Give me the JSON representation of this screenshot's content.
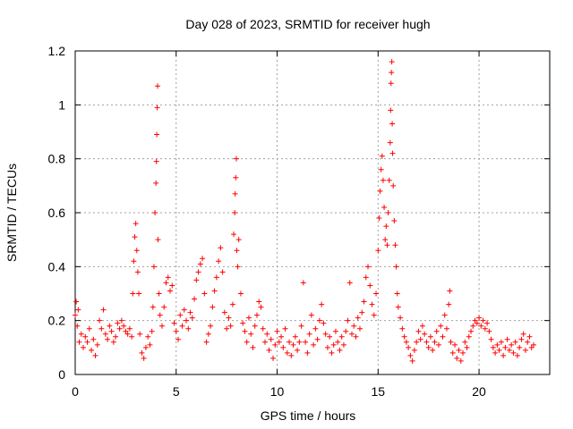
{
  "chart_data": {
    "type": "scatter",
    "title": "Day 028 of 2023, SRMTID for receiver hugh",
    "xlabel": "GPS time / hours",
    "ylabel": "SRMTID / TECUs",
    "xlim": [
      0,
      23.5
    ],
    "ylim": [
      0,
      1.2
    ],
    "x_ticks": [
      0,
      5,
      10,
      15,
      20
    ],
    "x_tick_labels": [
      "0",
      "5",
      "10",
      "15",
      "20"
    ],
    "y_ticks": [
      0,
      0.2,
      0.4,
      0.6,
      0.8,
      1.0,
      1.2
    ],
    "y_tick_labels": [
      "0",
      "0.2",
      "0.4",
      "0.6",
      "0.8",
      "1",
      "1.2"
    ],
    "grid": true,
    "marker": "+",
    "series": [
      {
        "name": "SRMTID",
        "color": "#ff0000",
        "points": [
          [
            0.0,
            0.22
          ],
          [
            0.05,
            0.27
          ],
          [
            0.1,
            0.18
          ],
          [
            0.15,
            0.24
          ],
          [
            0.2,
            0.12
          ],
          [
            0.3,
            0.15
          ],
          [
            0.4,
            0.1
          ],
          [
            0.5,
            0.14
          ],
          [
            0.6,
            0.12
          ],
          [
            0.7,
            0.17
          ],
          [
            0.8,
            0.09
          ],
          [
            0.9,
            0.13
          ],
          [
            1.0,
            0.07
          ],
          [
            1.1,
            0.11
          ],
          [
            1.2,
            0.2
          ],
          [
            1.3,
            0.17
          ],
          [
            1.4,
            0.24
          ],
          [
            1.5,
            0.15
          ],
          [
            1.6,
            0.13
          ],
          [
            1.7,
            0.18
          ],
          [
            1.8,
            0.16
          ],
          [
            1.9,
            0.12
          ],
          [
            2.0,
            0.14
          ],
          [
            2.1,
            0.19
          ],
          [
            2.2,
            0.17
          ],
          [
            2.3,
            0.2
          ],
          [
            2.4,
            0.18
          ],
          [
            2.5,
            0.16
          ],
          [
            2.6,
            0.15
          ],
          [
            2.7,
            0.17
          ],
          [
            2.8,
            0.14
          ],
          [
            2.85,
            0.3
          ],
          [
            2.9,
            0.42
          ],
          [
            2.95,
            0.51
          ],
          [
            3.0,
            0.56
          ],
          [
            3.05,
            0.46
          ],
          [
            3.1,
            0.38
          ],
          [
            3.15,
            0.3
          ],
          [
            3.2,
            0.15
          ],
          [
            3.3,
            0.08
          ],
          [
            3.4,
            0.06
          ],
          [
            3.5,
            0.1
          ],
          [
            3.6,
            0.14
          ],
          [
            3.7,
            0.11
          ],
          [
            3.8,
            0.16
          ],
          [
            3.85,
            0.25
          ],
          [
            3.9,
            0.4
          ],
          [
            3.95,
            0.6
          ],
          [
            4.0,
            0.71
          ],
          [
            4.02,
            0.79
          ],
          [
            4.04,
            0.89
          ],
          [
            4.06,
            0.99
          ],
          [
            4.08,
            1.07
          ],
          [
            4.1,
            0.5
          ],
          [
            4.15,
            0.3
          ],
          [
            4.2,
            0.22
          ],
          [
            4.3,
            0.18
          ],
          [
            4.4,
            0.25
          ],
          [
            4.5,
            0.34
          ],
          [
            4.6,
            0.36
          ],
          [
            4.7,
            0.31
          ],
          [
            4.8,
            0.33
          ],
          [
            4.9,
            0.19
          ],
          [
            5.0,
            0.16
          ],
          [
            5.1,
            0.13
          ],
          [
            5.2,
            0.22
          ],
          [
            5.3,
            0.18
          ],
          [
            5.4,
            0.24
          ],
          [
            5.5,
            0.2
          ],
          [
            5.6,
            0.17
          ],
          [
            5.7,
            0.23
          ],
          [
            5.8,
            0.21
          ],
          [
            5.9,
            0.28
          ],
          [
            6.0,
            0.35
          ],
          [
            6.1,
            0.38
          ],
          [
            6.2,
            0.41
          ],
          [
            6.3,
            0.43
          ],
          [
            6.4,
            0.3
          ],
          [
            6.5,
            0.12
          ],
          [
            6.6,
            0.15
          ],
          [
            6.7,
            0.18
          ],
          [
            6.8,
            0.25
          ],
          [
            6.9,
            0.31
          ],
          [
            7.0,
            0.36
          ],
          [
            7.1,
            0.42
          ],
          [
            7.2,
            0.47
          ],
          [
            7.3,
            0.38
          ],
          [
            7.4,
            0.23
          ],
          [
            7.5,
            0.17
          ],
          [
            7.6,
            0.21
          ],
          [
            7.7,
            0.18
          ],
          [
            7.8,
            0.26
          ],
          [
            7.85,
            0.52
          ],
          [
            7.9,
            0.6
          ],
          [
            7.92,
            0.67
          ],
          [
            7.95,
            0.73
          ],
          [
            7.98,
            0.8
          ],
          [
            8.0,
            0.46
          ],
          [
            8.05,
            0.4
          ],
          [
            8.1,
            0.5
          ],
          [
            8.2,
            0.3
          ],
          [
            8.3,
            0.19
          ],
          [
            8.4,
            0.16
          ],
          [
            8.5,
            0.12
          ],
          [
            8.6,
            0.21
          ],
          [
            8.7,
            0.15
          ],
          [
            8.8,
            0.1
          ],
          [
            8.9,
            0.18
          ],
          [
            9.0,
            0.22
          ],
          [
            9.1,
            0.27
          ],
          [
            9.2,
            0.25
          ],
          [
            9.3,
            0.17
          ],
          [
            9.4,
            0.12
          ],
          [
            9.5,
            0.15
          ],
          [
            9.6,
            0.09
          ],
          [
            9.7,
            0.13
          ],
          [
            9.8,
            0.06
          ],
          [
            9.9,
            0.11
          ],
          [
            10.0,
            0.16
          ],
          [
            10.1,
            0.12
          ],
          [
            10.2,
            0.14
          ],
          [
            10.3,
            0.1
          ],
          [
            10.4,
            0.17
          ],
          [
            10.5,
            0.08
          ],
          [
            10.6,
            0.12
          ],
          [
            10.7,
            0.07
          ],
          [
            10.8,
            0.11
          ],
          [
            10.9,
            0.14
          ],
          [
            11.0,
            0.09
          ],
          [
            11.1,
            0.12
          ],
          [
            11.2,
            0.18
          ],
          [
            11.3,
            0.34
          ],
          [
            11.4,
            0.12
          ],
          [
            11.5,
            0.08
          ],
          [
            11.6,
            0.15
          ],
          [
            11.7,
            0.22
          ],
          [
            11.8,
            0.11
          ],
          [
            11.9,
            0.17
          ],
          [
            12.0,
            0.13
          ],
          [
            12.1,
            0.2
          ],
          [
            12.2,
            0.26
          ],
          [
            12.3,
            0.19
          ],
          [
            12.4,
            0.15
          ],
          [
            12.5,
            0.1
          ],
          [
            12.6,
            0.14
          ],
          [
            12.7,
            0.08
          ],
          [
            12.8,
            0.11
          ],
          [
            12.9,
            0.16
          ],
          [
            13.0,
            0.12
          ],
          [
            13.1,
            0.09
          ],
          [
            13.2,
            0.14
          ],
          [
            13.3,
            0.11
          ],
          [
            13.4,
            0.16
          ],
          [
            13.5,
            0.2
          ],
          [
            13.6,
            0.34
          ],
          [
            13.7,
            0.15
          ],
          [
            13.8,
            0.18
          ],
          [
            13.9,
            0.14
          ],
          [
            14.0,
            0.21
          ],
          [
            14.1,
            0.17
          ],
          [
            14.2,
            0.23
          ],
          [
            14.3,
            0.27
          ],
          [
            14.4,
            0.36
          ],
          [
            14.5,
            0.4
          ],
          [
            14.6,
            0.33
          ],
          [
            14.7,
            0.26
          ],
          [
            14.8,
            0.22
          ],
          [
            14.9,
            0.3
          ],
          [
            15.0,
            0.46
          ],
          [
            15.05,
            0.58
          ],
          [
            15.1,
            0.68
          ],
          [
            15.15,
            0.76
          ],
          [
            15.2,
            0.81
          ],
          [
            15.25,
            0.72
          ],
          [
            15.3,
            0.62
          ],
          [
            15.35,
            0.5
          ],
          [
            15.4,
            0.55
          ],
          [
            15.45,
            0.48
          ],
          [
            15.5,
            0.6
          ],
          [
            15.55,
            0.72
          ],
          [
            15.6,
            0.86
          ],
          [
            15.62,
            0.98
          ],
          [
            15.64,
            1.08
          ],
          [
            15.66,
            1.12
          ],
          [
            15.68,
            1.16
          ],
          [
            15.7,
            0.93
          ],
          [
            15.72,
            0.82
          ],
          [
            15.75,
            0.7
          ],
          [
            15.8,
            0.57
          ],
          [
            15.85,
            0.48
          ],
          [
            15.9,
            0.4
          ],
          [
            15.95,
            0.3
          ],
          [
            16.0,
            0.25
          ],
          [
            16.1,
            0.21
          ],
          [
            16.2,
            0.17
          ],
          [
            16.3,
            0.14
          ],
          [
            16.4,
            0.12
          ],
          [
            16.5,
            0.1
          ],
          [
            16.6,
            0.07
          ],
          [
            16.7,
            0.05
          ],
          [
            16.8,
            0.09
          ],
          [
            16.9,
            0.12
          ],
          [
            17.0,
            0.16
          ],
          [
            17.1,
            0.13
          ],
          [
            17.2,
            0.18
          ],
          [
            17.3,
            0.15
          ],
          [
            17.4,
            0.12
          ],
          [
            17.5,
            0.1
          ],
          [
            17.6,
            0.14
          ],
          [
            17.7,
            0.09
          ],
          [
            17.8,
            0.12
          ],
          [
            17.9,
            0.16
          ],
          [
            18.0,
            0.11
          ],
          [
            18.1,
            0.18
          ],
          [
            18.2,
            0.14
          ],
          [
            18.3,
            0.22
          ],
          [
            18.4,
            0.17
          ],
          [
            18.5,
            0.26
          ],
          [
            18.55,
            0.31
          ],
          [
            18.6,
            0.12
          ],
          [
            18.7,
            0.08
          ],
          [
            18.8,
            0.11
          ],
          [
            18.9,
            0.06
          ],
          [
            19.0,
            0.09
          ],
          [
            19.1,
            0.05
          ],
          [
            19.2,
            0.08
          ],
          [
            19.3,
            0.12
          ],
          [
            19.4,
            0.1
          ],
          [
            19.5,
            0.14
          ],
          [
            19.6,
            0.16
          ],
          [
            19.7,
            0.18
          ],
          [
            19.8,
            0.2
          ],
          [
            19.9,
            0.19
          ],
          [
            20.0,
            0.21
          ],
          [
            20.1,
            0.18
          ],
          [
            20.2,
            0.2
          ],
          [
            20.3,
            0.17
          ],
          [
            20.4,
            0.19
          ],
          [
            20.5,
            0.16
          ],
          [
            20.6,
            0.13
          ],
          [
            20.7,
            0.1
          ],
          [
            20.8,
            0.08
          ],
          [
            20.9,
            0.11
          ],
          [
            21.0,
            0.09
          ],
          [
            21.1,
            0.12
          ],
          [
            21.2,
            0.07
          ],
          [
            21.3,
            0.1
          ],
          [
            21.4,
            0.13
          ],
          [
            21.5,
            0.09
          ],
          [
            21.6,
            0.11
          ],
          [
            21.7,
            0.08
          ],
          [
            21.8,
            0.12
          ],
          [
            21.9,
            0.07
          ],
          [
            22.0,
            0.1
          ],
          [
            22.1,
            0.13
          ],
          [
            22.2,
            0.15
          ],
          [
            22.3,
            0.09
          ],
          [
            22.4,
            0.12
          ],
          [
            22.5,
            0.14
          ],
          [
            22.6,
            0.1
          ],
          [
            22.7,
            0.11
          ]
        ]
      }
    ]
  }
}
